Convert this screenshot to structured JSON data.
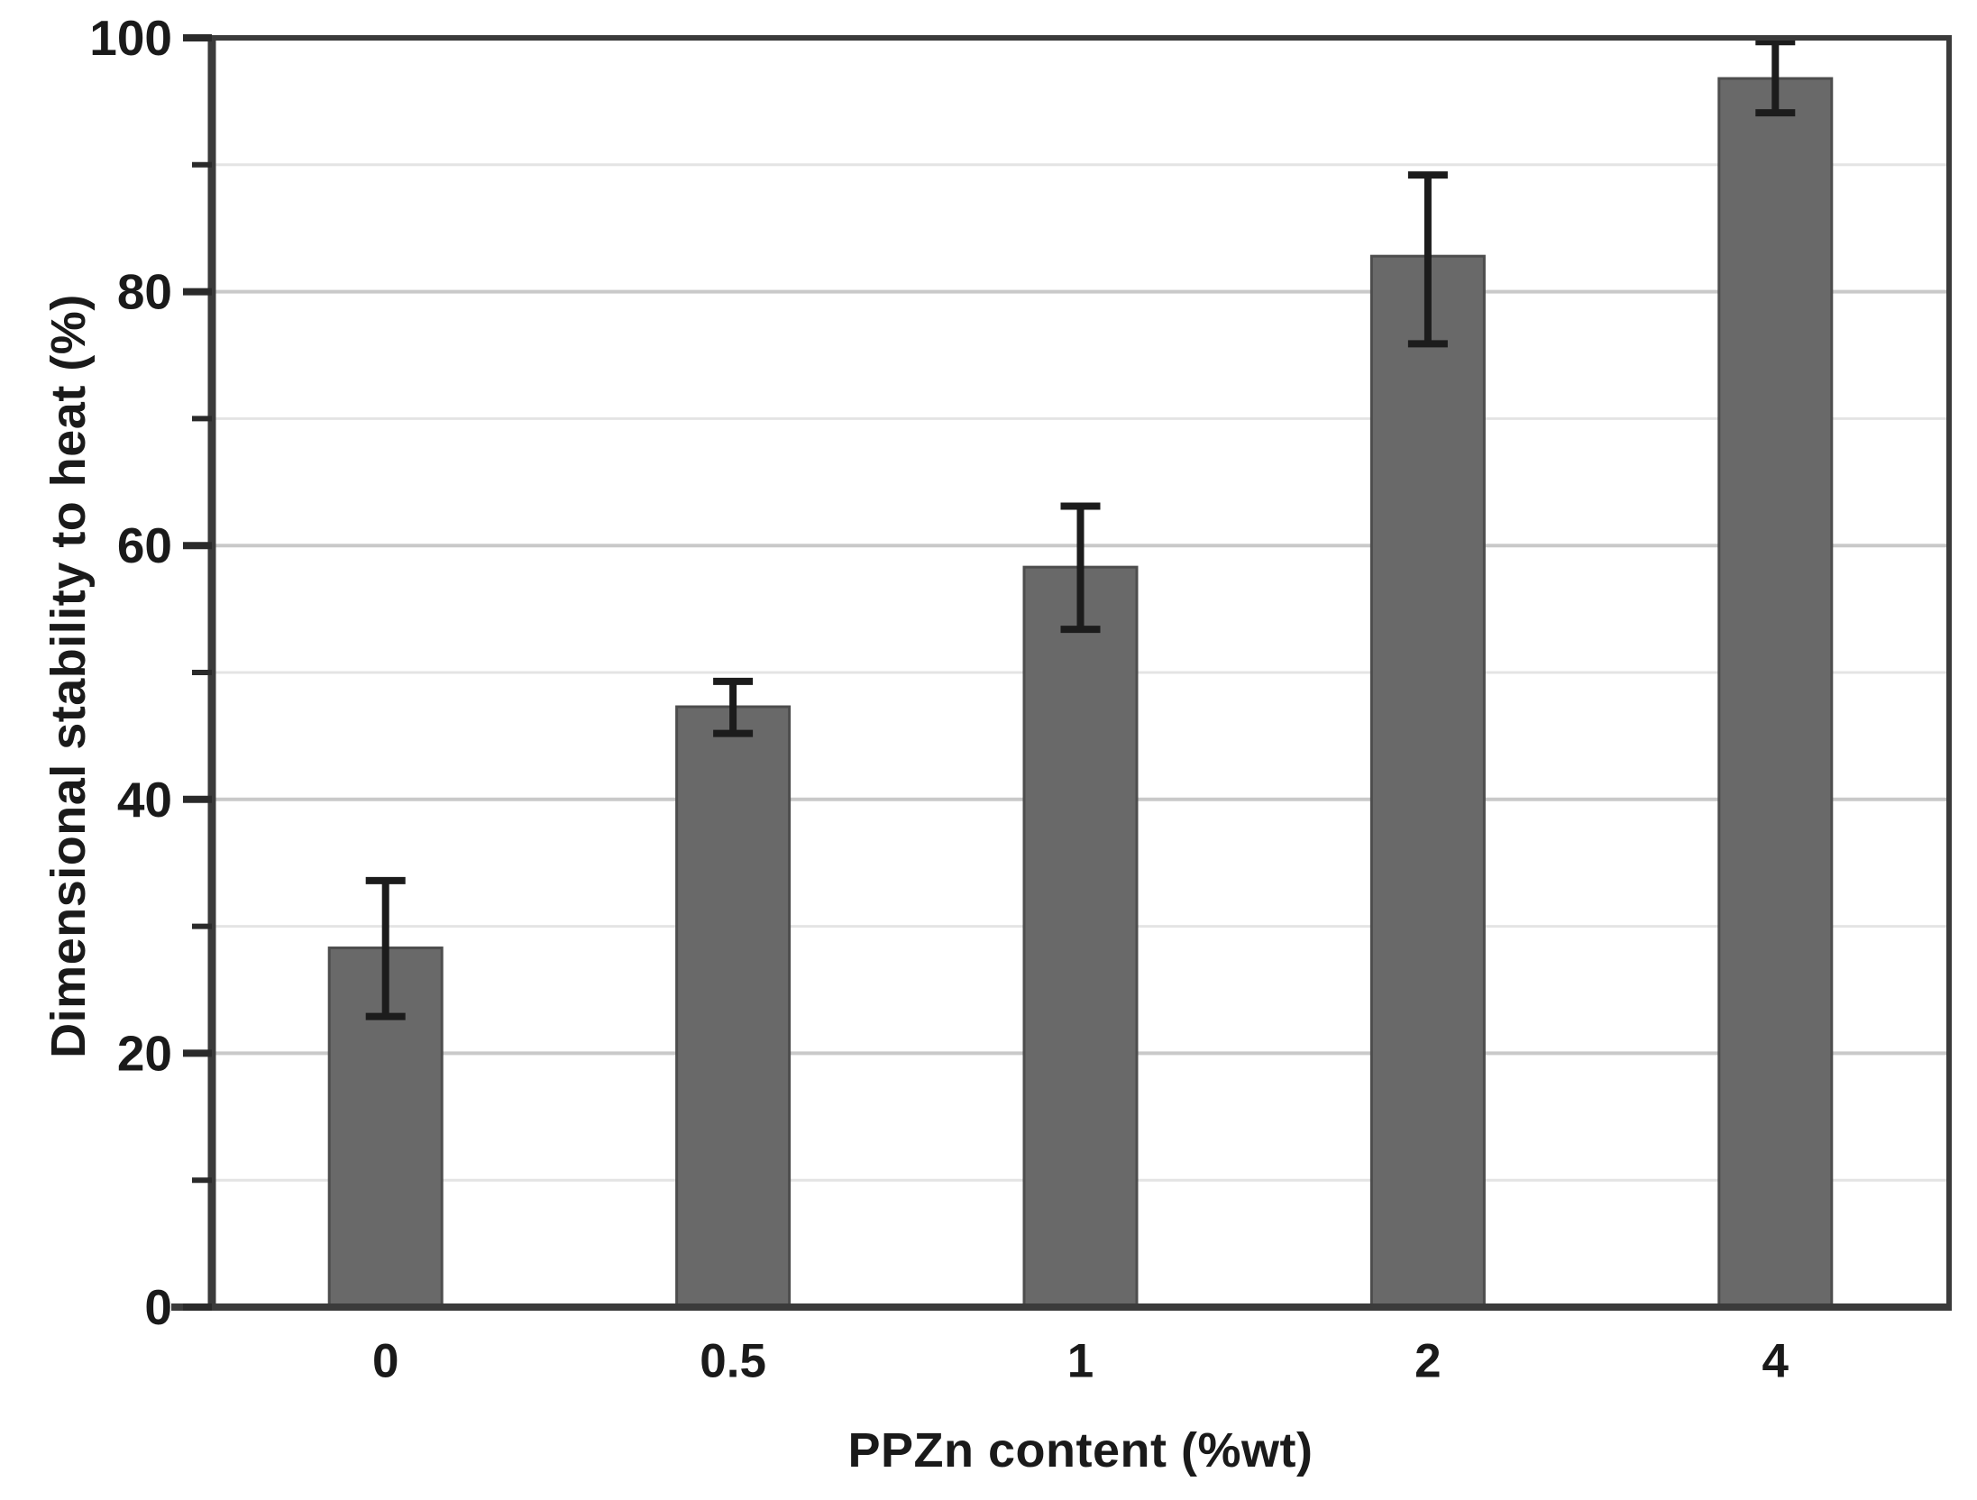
{
  "chart_data": {
    "type": "bar",
    "title": "",
    "xlabel": "PPZn content (%wt)",
    "ylabel": "Dimensional stability to heat (%)",
    "categories": [
      "0",
      "0.5",
      "1",
      "2",
      "4"
    ],
    "values": [
      28.3,
      47.3,
      58.3,
      82.8,
      96.8
    ],
    "error_bars_plus": [
      5.3,
      2.0,
      4.8,
      6.4,
      2.9
    ],
    "error_bars_minus": [
      5.4,
      2.1,
      4.9,
      6.9,
      2.7
    ],
    "ylim": [
      0,
      100
    ],
    "y_major_ticks": [
      0,
      20,
      40,
      60,
      80,
      100
    ],
    "y_minor_ticks": [
      10,
      30,
      50,
      70,
      90
    ],
    "grid": "horizontal, major and minor, full-width",
    "legend": "none",
    "colors": {
      "bar_fill": "#696969",
      "bar_edge": "#4d4d4d",
      "error_bar": "#1c1c1c",
      "axis_spine": "#3b3b3b",
      "tick_mark": "#2a2a2a",
      "text": "#1a1a1a",
      "major_grid": "#c9c9c9",
      "minor_grid": "#e4e4e4",
      "background": "#ffffff"
    }
  }
}
